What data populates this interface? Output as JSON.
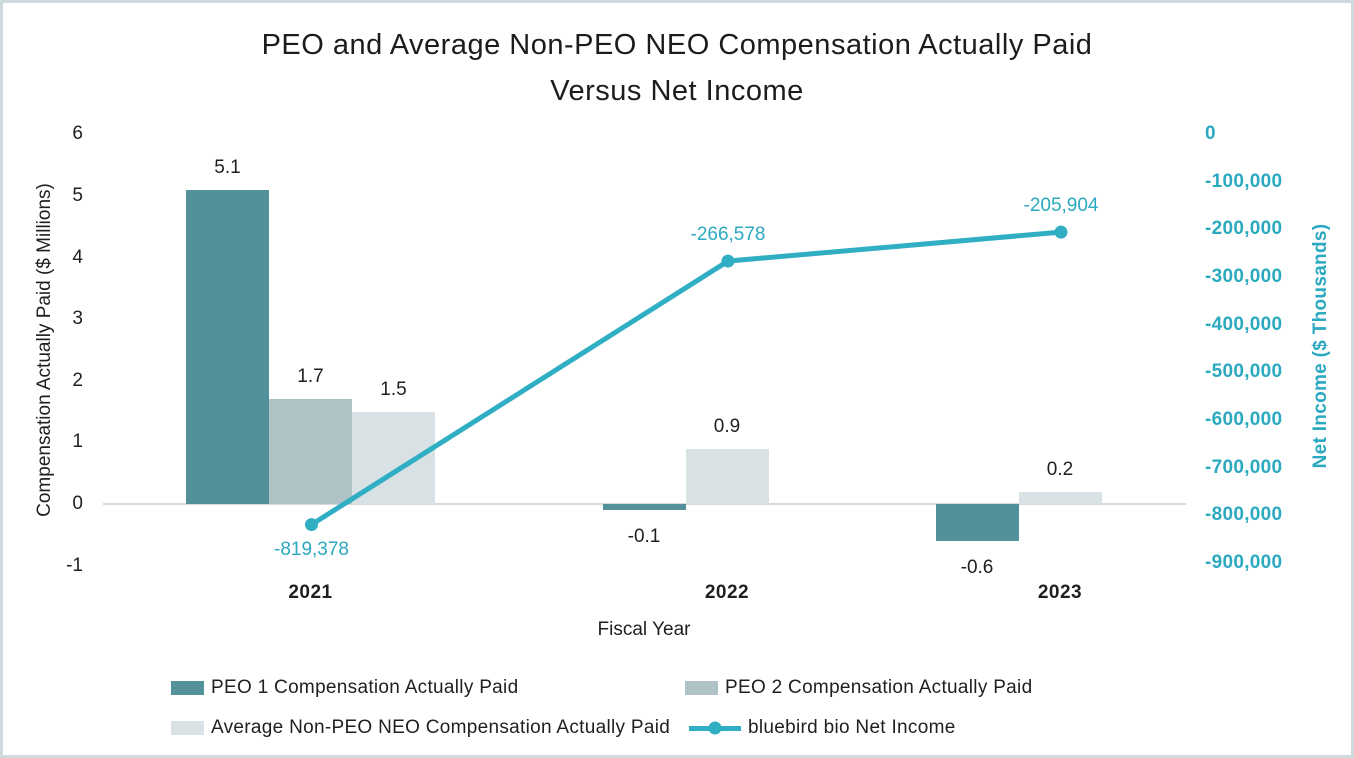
{
  "title": {
    "line1": "PEO and Average Non-PEO NEO Compensation Actually Paid",
    "line2": "Versus Net Income"
  },
  "chart_data": {
    "type": "bar+line combo",
    "title": "PEO and Average Non-PEO NEO Compensation Actually Paid Versus Net Income",
    "categories": [
      "2021",
      "2022",
      "2023"
    ],
    "x_axis_title": "Fiscal Year",
    "left_axis": {
      "title": "Compensation Actually Paid ($ Millions)",
      "ticks": [
        6,
        5,
        4,
        3,
        2,
        1,
        0,
        -1
      ],
      "range": [
        -1,
        6
      ]
    },
    "right_axis": {
      "title": "Net Income ($ Thousands)",
      "tick_labels": [
        "0",
        "-100,000",
        "-200,000",
        "-300,000",
        "-400,000",
        "-500,000",
        "-600,000",
        "-700,000",
        "-800,000",
        "-900,000"
      ],
      "range": [
        -900000,
        0
      ],
      "text_color": "#2BA9C0"
    },
    "bar_series": [
      {
        "name": "PEO 1 Compensation Actually Paid",
        "color": "#52909A",
        "values": [
          5.1,
          -0.1,
          -0.6
        ],
        "labels": [
          "5.1",
          "-0.1",
          "-0.6"
        ]
      },
      {
        "name": "PEO 2 Compensation Actually Paid",
        "color": "#AFC3C7",
        "values": [
          1.7,
          null,
          null
        ],
        "labels": [
          "1.7",
          null,
          null
        ]
      },
      {
        "name": "Average Non-PEO NEO Compensation Actually Paid",
        "color": "#D8E1E4",
        "values": [
          1.5,
          0.9,
          0.2
        ],
        "labels": [
          "1.5",
          "0.9",
          "0.2"
        ]
      }
    ],
    "line_series": {
      "name": "bluebird bio Net Income",
      "color": "#2FAEC4",
      "values": [
        -819378,
        -266578,
        -205904
      ],
      "labels": [
        "-819,378",
        "-266,578",
        "-205,904"
      ],
      "label_side": [
        "below",
        "above",
        "above"
      ]
    },
    "legend_position": "bottom",
    "grid": "zero-line-only",
    "grid_color": "#D9D9D9"
  },
  "colors": {
    "text": "#1F1F1F",
    "frame_border": "#CEDADE"
  }
}
